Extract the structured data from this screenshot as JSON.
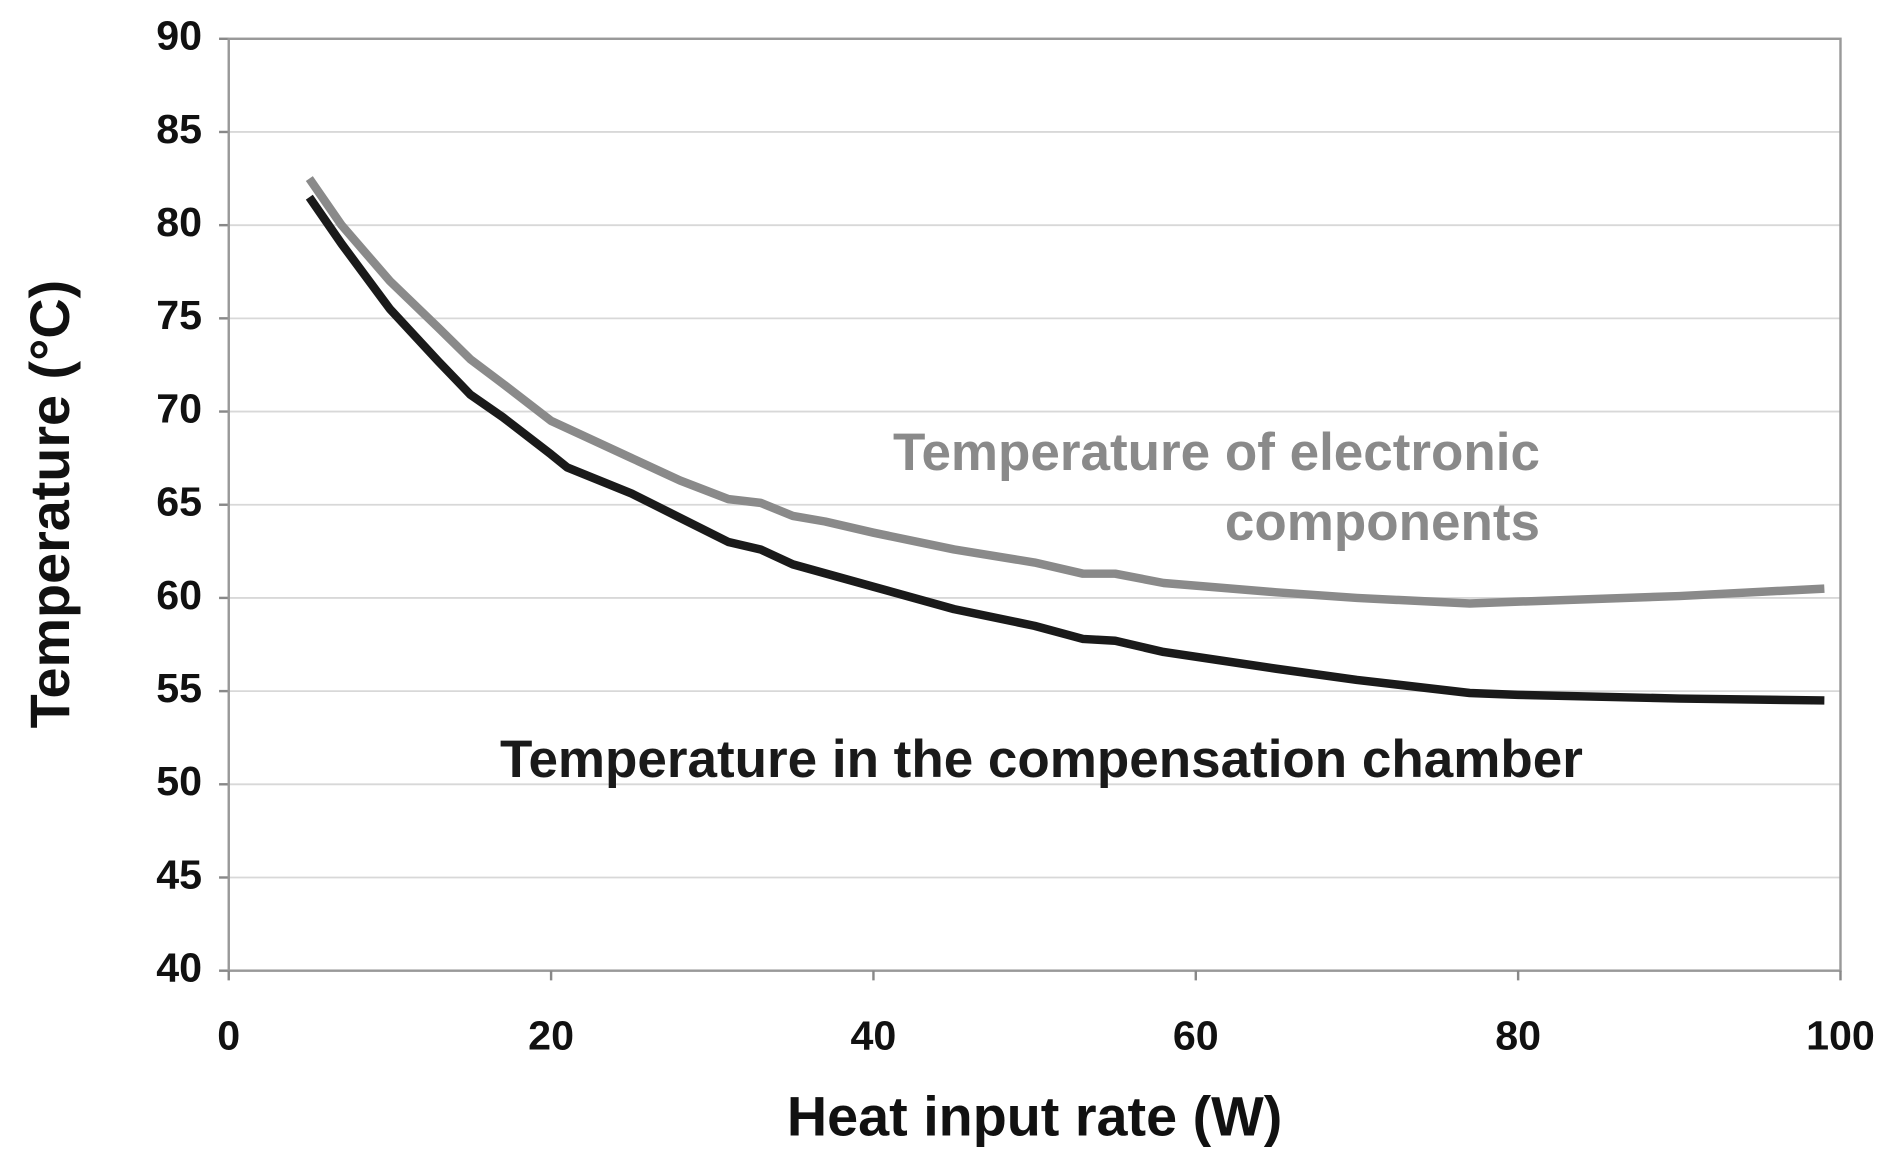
{
  "chart_data": {
    "type": "line",
    "xlabel": "Heat input rate (W)",
    "ylabel": "Temperature (°C)",
    "xlim": [
      0,
      100
    ],
    "xticks": [
      0,
      20,
      40,
      60,
      80,
      100
    ],
    "ylim": [
      40,
      90
    ],
    "yticks": [
      40,
      45,
      50,
      55,
      60,
      65,
      70,
      75,
      80,
      85,
      90
    ],
    "grid": true,
    "series": [
      {
        "name": "Temperature of electronic components",
        "color": "#8a8a8a",
        "x": [
          5,
          7,
          10,
          13,
          15,
          17,
          20,
          22,
          25,
          28,
          31,
          33,
          35,
          37,
          40,
          45,
          50,
          53,
          55,
          58,
          65,
          70,
          77,
          80,
          90,
          99
        ],
        "values": [
          82.5,
          80,
          77,
          74.5,
          72.8,
          71.5,
          69.5,
          68.7,
          67.5,
          66.3,
          65.3,
          65.1,
          64.4,
          64.1,
          63.5,
          62.6,
          61.9,
          61.3,
          61.3,
          60.8,
          60.3,
          60,
          59.7,
          59.8,
          60.1,
          60.5
        ]
      },
      {
        "name": "Temperature in the compensation chamber",
        "color": "#1a1a1a",
        "x": [
          5,
          7,
          10,
          13,
          15,
          17,
          20,
          21,
          25,
          28,
          31,
          33,
          35,
          40,
          45,
          50,
          53,
          55,
          58,
          65,
          70,
          77,
          80,
          90,
          99
        ],
        "values": [
          81.5,
          79,
          75.5,
          72.7,
          70.9,
          69.7,
          67.7,
          67,
          65.6,
          64.3,
          63,
          62.6,
          61.8,
          60.6,
          59.4,
          58.5,
          57.8,
          57.7,
          57.1,
          56.2,
          55.6,
          54.9,
          54.8,
          54.6,
          54.5
        ]
      }
    ]
  }
}
